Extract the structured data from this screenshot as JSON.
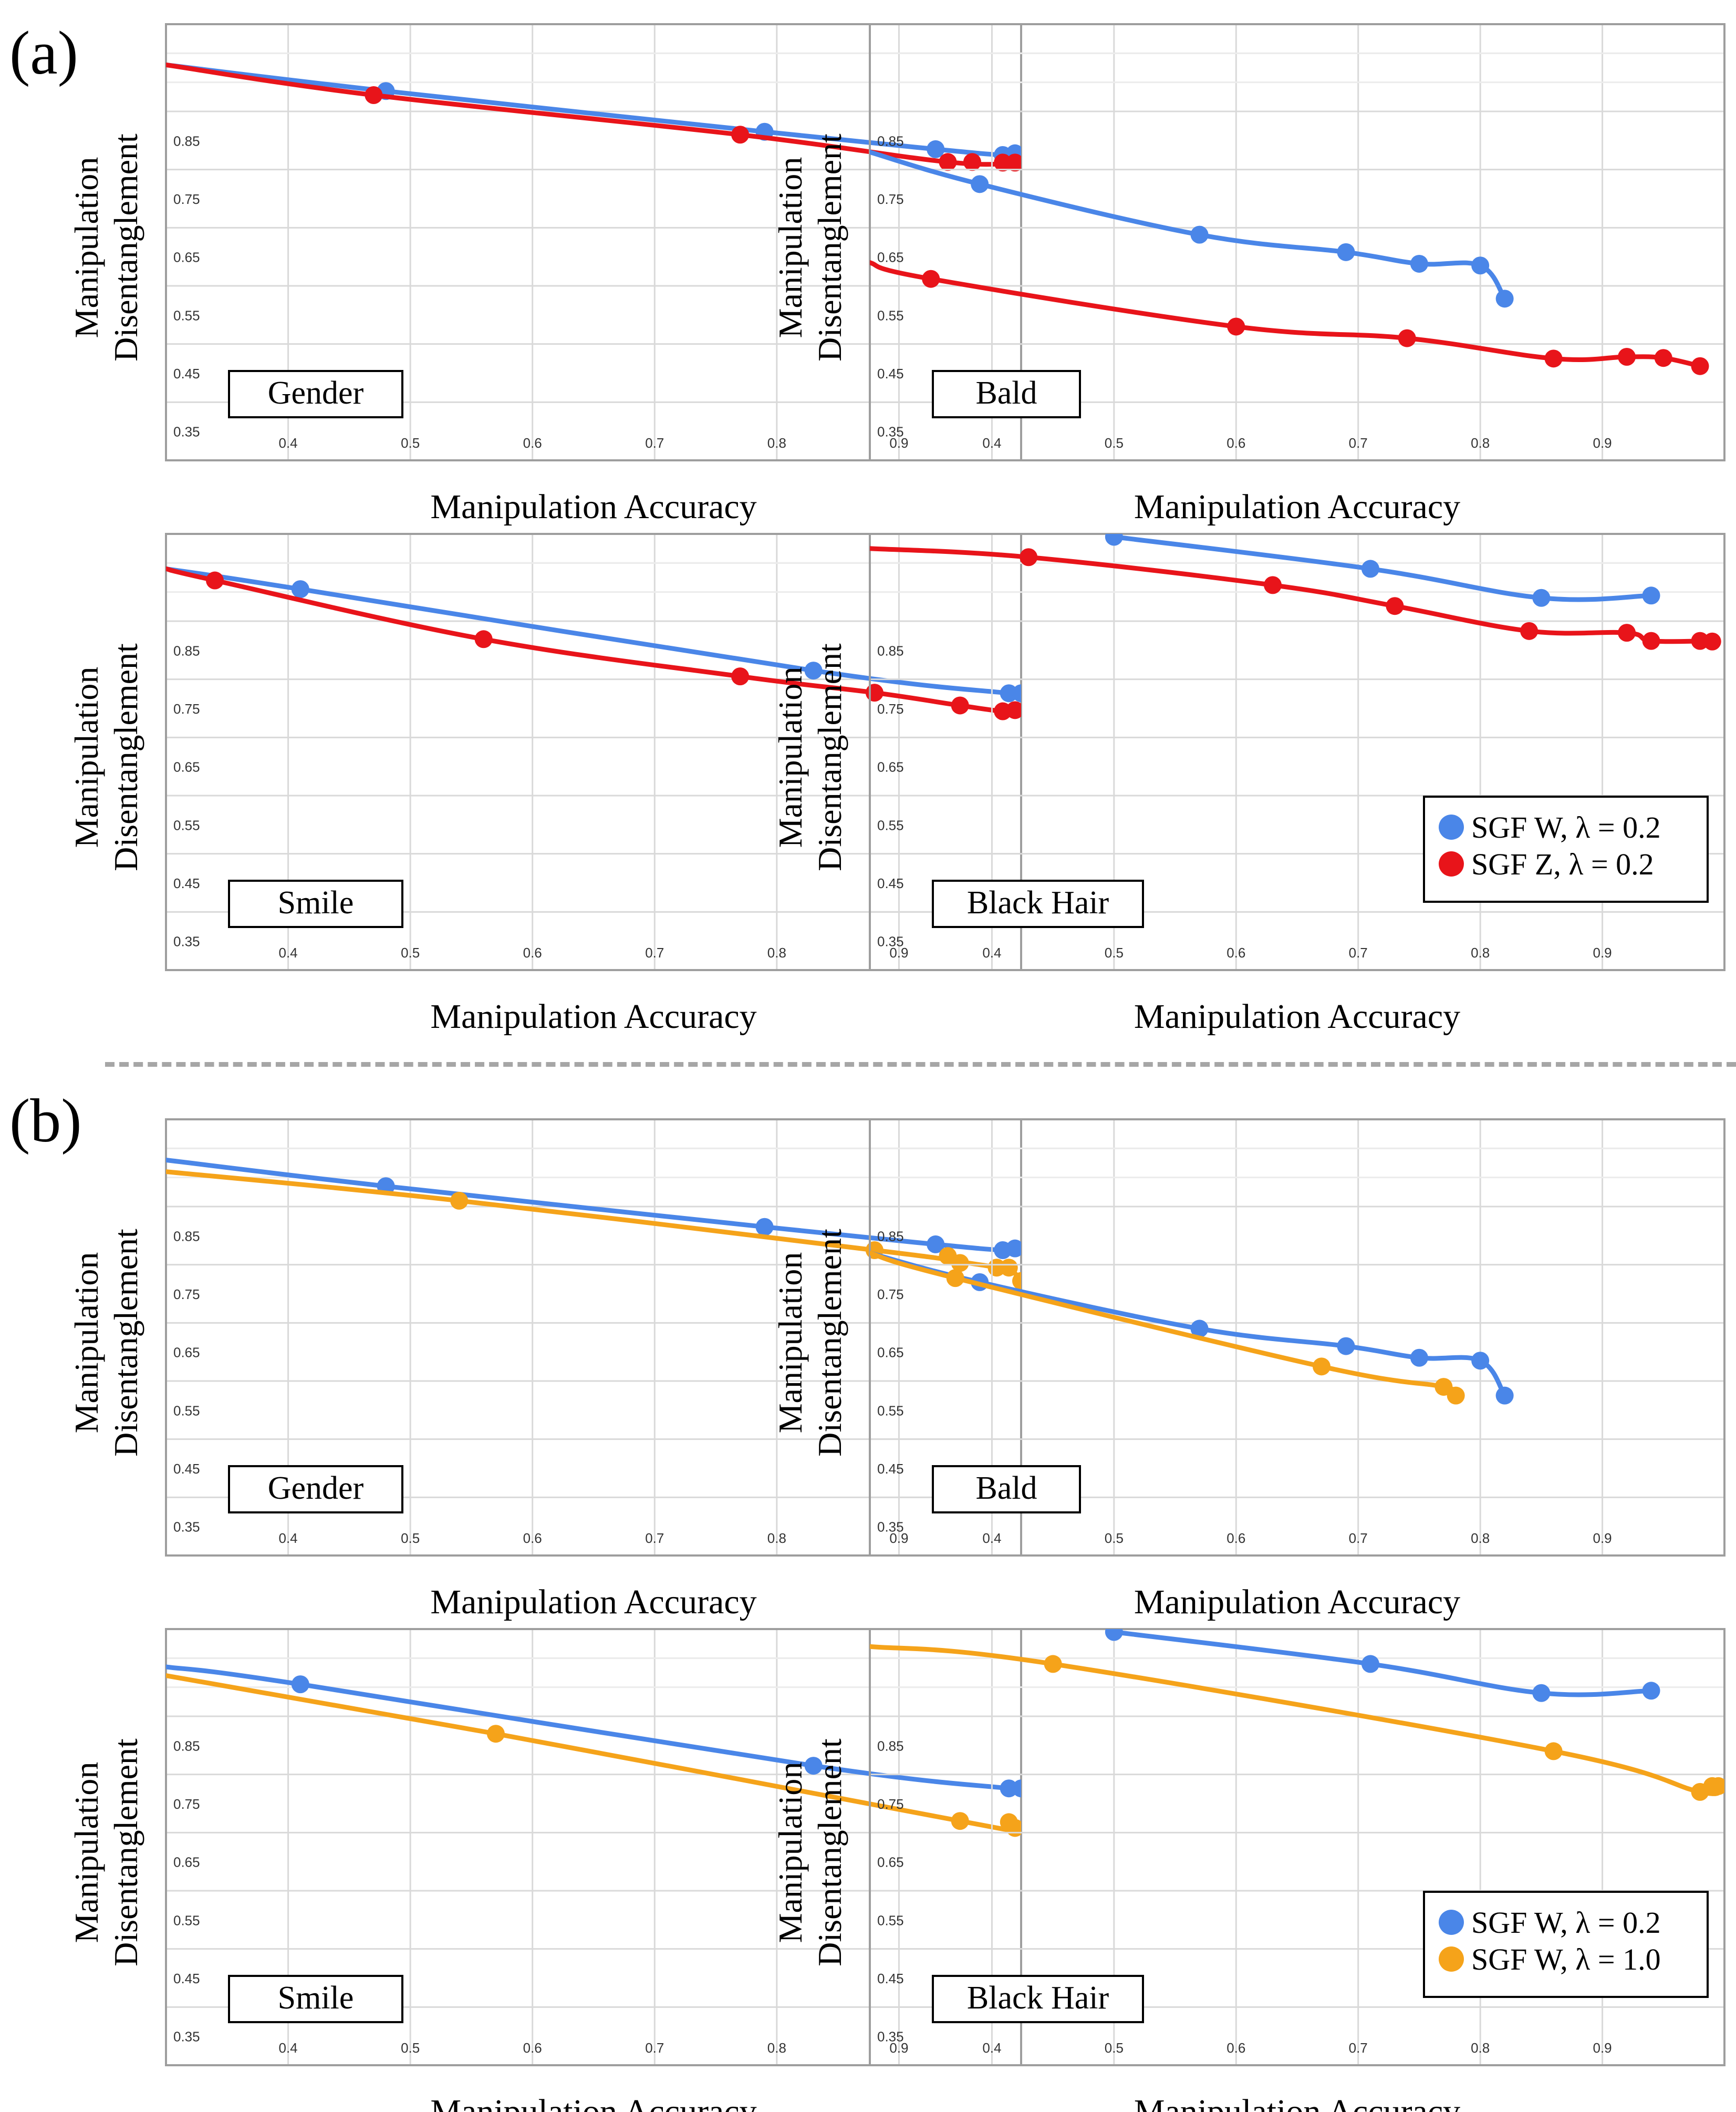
{
  "figure": {
    "sections": [
      {
        "label": "(a)"
      },
      {
        "label": "(b)"
      }
    ]
  },
  "colors": {
    "blue": "#4a86e8",
    "red": "#e8141a",
    "orange": "#f5a31a",
    "grid": "#d9d9d9",
    "axis": "#9e9e9e"
  },
  "common": {
    "xlabel": "Manipulation Accuracy",
    "ylabel_line1": "Manipulation",
    "ylabel_line2": "Disentanglement",
    "xticks": [
      "0.4",
      "0.5",
      "0.6",
      "0.7",
      "0.8",
      "0.9"
    ],
    "yticks": [
      "0.35",
      "0.45",
      "0.55",
      "0.65",
      "0.75",
      "0.85"
    ]
  },
  "chart_data": [
    {
      "type": "line",
      "section": "(a)",
      "title": "Gender",
      "xlabel": "Manipulation Accuracy",
      "ylabel": "Manipulation Disentanglement",
      "xlim": [
        0.3,
        1.0
      ],
      "ylim": [
        0.3,
        1.05
      ],
      "legend": null,
      "series": [
        {
          "name": "SGF W, λ = 0.2",
          "color": "blue",
          "line": [
            [
              0.3,
              0.98
            ],
            [
              0.48,
              0.935
            ],
            [
              0.79,
              0.865
            ],
            [
              0.93,
              0.835
            ],
            [
              0.985,
              0.825
            ],
            [
              0.995,
              0.828
            ]
          ],
          "points": [
            [
              0.48,
              0.935
            ],
            [
              0.79,
              0.865
            ],
            [
              0.93,
              0.835
            ],
            [
              0.985,
              0.825
            ],
            [
              0.995,
              0.828
            ]
          ]
        },
        {
          "name": "SGF Z, λ = 0.2",
          "color": "red",
          "line": [
            [
              0.3,
              0.98
            ],
            [
              0.47,
              0.928
            ],
            [
              0.77,
              0.86
            ],
            [
              0.94,
              0.813
            ],
            [
              0.995,
              0.812
            ]
          ],
          "points": [
            [
              0.47,
              0.928
            ],
            [
              0.77,
              0.86
            ],
            [
              0.94,
              0.813
            ],
            [
              0.96,
              0.813
            ],
            [
              0.985,
              0.812
            ],
            [
              0.995,
              0.812
            ]
          ]
        }
      ]
    },
    {
      "type": "line",
      "section": "(a)",
      "title": "Bald",
      "xlabel": "Manipulation Accuracy",
      "ylabel": "Manipulation Disentanglement",
      "xlim": [
        0.3,
        1.0
      ],
      "ylim": [
        0.3,
        1.05
      ],
      "legend": null,
      "series": [
        {
          "name": "SGF W, λ = 0.2",
          "color": "blue",
          "line": [
            [
              0.3,
              0.83
            ],
            [
              0.39,
              0.775
            ],
            [
              0.57,
              0.688
            ],
            [
              0.69,
              0.658
            ],
            [
              0.75,
              0.638
            ],
            [
              0.8,
              0.635
            ],
            [
              0.82,
              0.578
            ]
          ],
          "points": [
            [
              0.39,
              0.775
            ],
            [
              0.57,
              0.688
            ],
            [
              0.69,
              0.658
            ],
            [
              0.75,
              0.638
            ],
            [
              0.8,
              0.635
            ],
            [
              0.82,
              0.578
            ]
          ]
        },
        {
          "name": "SGF Z, λ = 0.2",
          "color": "red",
          "line": [
            [
              0.3,
              0.64
            ],
            [
              0.35,
              0.612
            ],
            [
              0.6,
              0.53
            ],
            [
              0.74,
              0.51
            ],
            [
              0.86,
              0.475
            ],
            [
              0.92,
              0.478
            ],
            [
              0.95,
              0.476
            ],
            [
              0.98,
              0.462
            ]
          ],
          "points": [
            [
              0.35,
              0.612
            ],
            [
              0.6,
              0.53
            ],
            [
              0.74,
              0.51
            ],
            [
              0.86,
              0.475
            ],
            [
              0.92,
              0.478
            ],
            [
              0.95,
              0.476
            ],
            [
              0.98,
              0.462
            ]
          ]
        }
      ]
    },
    {
      "type": "line",
      "section": "(a)",
      "title": "Smile",
      "xlabel": "Manipulation Accuracy",
      "ylabel": "Manipulation Disentanglement",
      "xlim": [
        0.3,
        1.0
      ],
      "ylim": [
        0.3,
        1.05
      ],
      "legend": null,
      "series": [
        {
          "name": "SGF W, λ = 0.2",
          "color": "blue",
          "line": [
            [
              0.3,
              0.99
            ],
            [
              0.41,
              0.955
            ],
            [
              0.83,
              0.815
            ],
            [
              0.99,
              0.776
            ],
            [
              1.0,
              0.776
            ]
          ],
          "points": [
            [
              0.41,
              0.955
            ],
            [
              0.83,
              0.815
            ],
            [
              0.99,
              0.776
            ],
            [
              1.0,
              0.776
            ]
          ]
        },
        {
          "name": "SGF Z, λ = 0.2",
          "color": "red",
          "line": [
            [
              0.3,
              0.99
            ],
            [
              0.34,
              0.97
            ],
            [
              0.56,
              0.869
            ],
            [
              0.77,
              0.805
            ],
            [
              0.88,
              0.777
            ],
            [
              0.95,
              0.755
            ],
            [
              0.985,
              0.745
            ],
            [
              1.0,
              0.747
            ]
          ],
          "points": [
            [
              0.34,
              0.97
            ],
            [
              0.56,
              0.869
            ],
            [
              0.77,
              0.805
            ],
            [
              0.88,
              0.777
            ],
            [
              0.95,
              0.755
            ],
            [
              0.985,
              0.745
            ],
            [
              0.995,
              0.747
            ]
          ]
        }
      ]
    },
    {
      "type": "line",
      "section": "(a)",
      "title": "Black Hair",
      "xlabel": "Manipulation Accuracy",
      "ylabel": "Manipulation Disentanglement",
      "xlim": [
        0.3,
        1.0
      ],
      "ylim": [
        0.3,
        1.05
      ],
      "legend": "bottom-right",
      "series": [
        {
          "name": "SGF W, λ = 0.2",
          "color": "blue",
          "line": [
            [
              0.5,
              1.045
            ],
            [
              0.71,
              0.99
            ],
            [
              0.85,
              0.94
            ],
            [
              0.94,
              0.944
            ]
          ],
          "points": [
            [
              0.5,
              1.045
            ],
            [
              0.71,
              0.99
            ],
            [
              0.85,
              0.94
            ],
            [
              0.94,
              0.944
            ]
          ]
        },
        {
          "name": "SGF Z, λ = 0.2",
          "color": "red",
          "line": [
            [
              0.3,
              1.025
            ],
            [
              0.43,
              1.01
            ],
            [
              0.63,
              0.962
            ],
            [
              0.73,
              0.926
            ],
            [
              0.84,
              0.883
            ],
            [
              0.92,
              0.88
            ],
            [
              0.94,
              0.866
            ],
            [
              0.99,
              0.866
            ]
          ],
          "points": [
            [
              0.43,
              1.01
            ],
            [
              0.63,
              0.962
            ],
            [
              0.73,
              0.926
            ],
            [
              0.84,
              0.883
            ],
            [
              0.92,
              0.88
            ],
            [
              0.94,
              0.866
            ],
            [
              0.98,
              0.866
            ],
            [
              0.99,
              0.865
            ]
          ]
        }
      ]
    },
    {
      "type": "line",
      "section": "(b)",
      "title": "Gender",
      "xlabel": "Manipulation Accuracy",
      "ylabel": "Manipulation Disentanglement",
      "xlim": [
        0.3,
        1.0
      ],
      "ylim": [
        0.3,
        1.05
      ],
      "legend": null,
      "series": [
        {
          "name": "SGF W, λ = 0.2",
          "color": "blue",
          "line": [
            [
              0.3,
              0.98
            ],
            [
              0.48,
              0.935
            ],
            [
              0.79,
              0.865
            ],
            [
              0.93,
              0.835
            ],
            [
              0.985,
              0.825
            ],
            [
              0.995,
              0.828
            ]
          ],
          "points": [
            [
              0.48,
              0.935
            ],
            [
              0.79,
              0.865
            ],
            [
              0.93,
              0.835
            ],
            [
              0.985,
              0.825
            ],
            [
              0.995,
              0.828
            ]
          ]
        },
        {
          "name": "SGF W, λ = 1.0",
          "color": "orange",
          "line": [
            [
              0.3,
              0.96
            ],
            [
              0.54,
              0.91
            ],
            [
              0.88,
              0.825
            ],
            [
              0.95,
              0.805
            ],
            [
              0.99,
              0.79
            ],
            [
              1.0,
              0.77
            ]
          ],
          "points": [
            [
              0.54,
              0.91
            ],
            [
              0.88,
              0.825
            ],
            [
              0.94,
              0.815
            ],
            [
              0.95,
              0.803
            ],
            [
              0.98,
              0.795
            ],
            [
              0.99,
              0.795
            ],
            [
              1.0,
              0.772
            ]
          ]
        }
      ]
    },
    {
      "type": "line",
      "section": "(b)",
      "title": "Bald",
      "xlabel": "Manipulation Accuracy",
      "ylabel": "Manipulation Disentanglement",
      "xlim": [
        0.3,
        1.0
      ],
      "ylim": [
        0.3,
        1.05
      ],
      "legend": null,
      "series": [
        {
          "name": "SGF W, λ = 0.2",
          "color": "blue",
          "line": [
            [
              0.3,
              0.82
            ],
            [
              0.39,
              0.77
            ],
            [
              0.57,
              0.69
            ],
            [
              0.69,
              0.66
            ],
            [
              0.75,
              0.64
            ],
            [
              0.8,
              0.635
            ],
            [
              0.82,
              0.575
            ]
          ],
          "points": [
            [
              0.39,
              0.77
            ],
            [
              0.57,
              0.69
            ],
            [
              0.69,
              0.66
            ],
            [
              0.75,
              0.64
            ],
            [
              0.8,
              0.635
            ],
            [
              0.82,
              0.575
            ]
          ]
        },
        {
          "name": "SGF W, λ = 1.0",
          "color": "orange",
          "line": [
            [
              0.3,
              0.82
            ],
            [
              0.37,
              0.777
            ],
            [
              0.67,
              0.625
            ],
            [
              0.77,
              0.59
            ],
            [
              0.78,
              0.575
            ]
          ],
          "points": [
            [
              0.37,
              0.777
            ],
            [
              0.67,
              0.625
            ],
            [
              0.77,
              0.59
            ],
            [
              0.78,
              0.575
            ]
          ]
        }
      ]
    },
    {
      "type": "line",
      "section": "(b)",
      "title": "Smile",
      "xlabel": "Manipulation Accuracy",
      "ylabel": "Manipulation Disentanglement",
      "xlim": [
        0.3,
        1.0
      ],
      "ylim": [
        0.3,
        1.05
      ],
      "legend": null,
      "series": [
        {
          "name": "SGF W, λ = 0.2",
          "color": "blue",
          "line": [
            [
              0.3,
              0.985
            ],
            [
              0.41,
              0.955
            ],
            [
              0.83,
              0.815
            ],
            [
              0.99,
              0.776
            ],
            [
              1.0,
              0.776
            ]
          ],
          "points": [
            [
              0.41,
              0.955
            ],
            [
              0.83,
              0.815
            ],
            [
              0.99,
              0.776
            ],
            [
              1.0,
              0.776
            ]
          ]
        },
        {
          "name": "SGF W, λ = 1.0",
          "color": "orange",
          "line": [
            [
              0.3,
              0.97
            ],
            [
              0.57,
              0.87
            ],
            [
              0.95,
              0.72
            ],
            [
              0.99,
              0.705
            ],
            [
              1.0,
              0.705
            ]
          ],
          "points": [
            [
              0.57,
              0.87
            ],
            [
              0.95,
              0.72
            ],
            [
              0.99,
              0.718
            ],
            [
              0.995,
              0.708
            ]
          ]
        }
      ]
    },
    {
      "type": "line",
      "section": "(b)",
      "title": "Black Hair",
      "xlabel": "Manipulation Accuracy",
      "ylabel": "Manipulation Disentanglement",
      "xlim": [
        0.3,
        1.0
      ],
      "ylim": [
        0.3,
        1.05
      ],
      "legend": "bottom-right",
      "series": [
        {
          "name": "SGF W, λ = 0.2",
          "color": "blue",
          "line": [
            [
              0.5,
              1.045
            ],
            [
              0.71,
              0.99
            ],
            [
              0.85,
              0.94
            ],
            [
              0.94,
              0.944
            ]
          ],
          "points": [
            [
              0.5,
              1.045
            ],
            [
              0.71,
              0.99
            ],
            [
              0.85,
              0.94
            ],
            [
              0.94,
              0.944
            ]
          ]
        },
        {
          "name": "SGF W, λ = 1.0",
          "color": "orange",
          "line": [
            [
              0.3,
              1.02
            ],
            [
              0.45,
              0.99
            ],
            [
              0.86,
              0.84
            ],
            [
              0.98,
              0.77
            ],
            [
              0.995,
              0.78
            ]
          ],
          "points": [
            [
              0.45,
              0.99
            ],
            [
              0.86,
              0.84
            ],
            [
              0.98,
              0.77
            ],
            [
              0.99,
              0.78
            ],
            [
              0.995,
              0.78
            ]
          ]
        }
      ]
    }
  ]
}
